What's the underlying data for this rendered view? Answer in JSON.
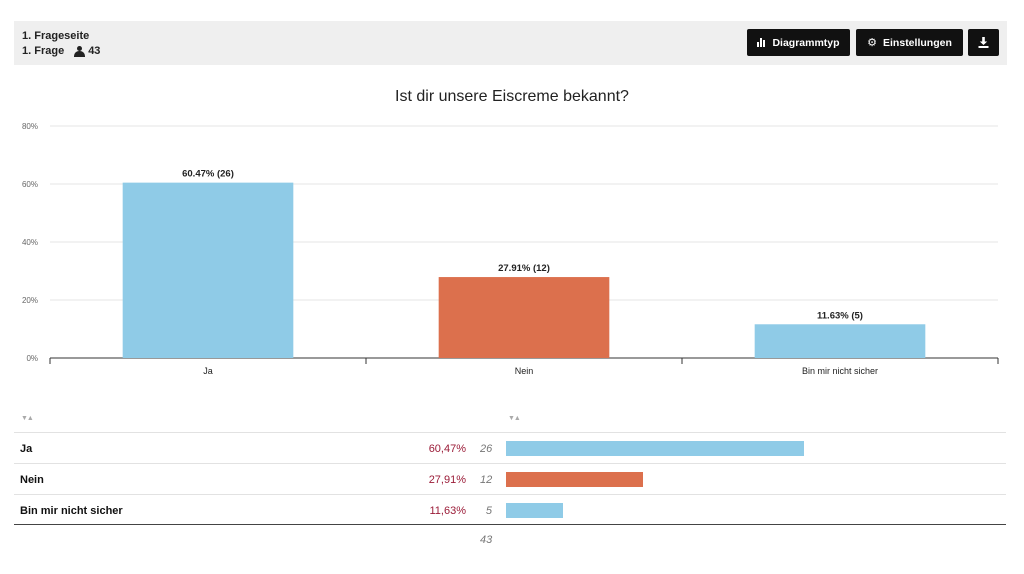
{
  "header": {
    "page_label": "1. Frageseite",
    "question_label": "1. Frage",
    "respondents": "43",
    "buttons": {
      "chart_type": "Diagrammtyp",
      "settings": "Einstellungen"
    }
  },
  "colors": {
    "blue": "#8fcbe7",
    "orange": "#dc704d",
    "pct_text": "#9b1c38"
  },
  "chart_data": {
    "type": "bar",
    "title": "Ist dir unsere Eiscreme bekannt?",
    "categories": [
      "Ja",
      "Nein",
      "Bin mir nicht sicher"
    ],
    "values": [
      60.47,
      27.91,
      11.63
    ],
    "counts": [
      26,
      12,
      5
    ],
    "data_labels": [
      "60.47% (26)",
      "27.91% (12)",
      "11.63% (5)"
    ],
    "bar_colors": [
      "#8fcbe7",
      "#dc704d",
      "#8fcbe7"
    ],
    "yticks": [
      "0%",
      "20%",
      "40%",
      "60%",
      "80%"
    ],
    "ylim": [
      0,
      80
    ],
    "grid": true
  },
  "table": {
    "rows": [
      {
        "label": "Ja",
        "percent": "60,47%",
        "count": "26",
        "share": 0.6047,
        "color": "#8fcbe7"
      },
      {
        "label": "Nein",
        "percent": "27,91%",
        "count": "12",
        "share": 0.2791,
        "color": "#dc704d"
      },
      {
        "label": "Bin mir nicht sicher",
        "percent": "11,63%",
        "count": "5",
        "share": 0.1163,
        "color": "#8fcbe7"
      }
    ],
    "total": "43"
  }
}
